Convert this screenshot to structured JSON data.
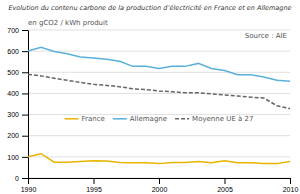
{
  "chart_data": {
    "type": "line",
    "title": "Evolution du contenu carbone de la production d’électricité en France et en Allemagne",
    "ylabel": "en gCO2 / kWh produit",
    "annotations": [
      "Source : AIE"
    ],
    "x": [
      1990,
      1991,
      1992,
      1993,
      1994,
      1995,
      1996,
      1997,
      1998,
      1999,
      2000,
      2001,
      2002,
      2003,
      2004,
      2005,
      2006,
      2007,
      2008,
      2009,
      2010
    ],
    "series": [
      {
        "name": "France",
        "color": "#e8b400",
        "line_style": "solid",
        "values": [
          100,
          115,
          75,
          75,
          78,
          82,
          80,
          73,
          72,
          72,
          68,
          73,
          73,
          78,
          72,
          82,
          72,
          72,
          68,
          68,
          78
        ]
      },
      {
        "name": "Allemagne",
        "color": "#5ab0d8",
        "line_style": "solid",
        "values": [
          600,
          618,
          598,
          588,
          572,
          568,
          562,
          552,
          528,
          528,
          518,
          528,
          528,
          542,
          518,
          508,
          488,
          488,
          478,
          462,
          458
        ]
      },
      {
        "name": "Moyenne UE à 27",
        "color": "#666666",
        "line_style": "dashed",
        "values": [
          490,
          483,
          472,
          462,
          452,
          443,
          438,
          432,
          422,
          418,
          412,
          408,
          403,
          403,
          398,
          393,
          388,
          382,
          378,
          342,
          328
        ]
      }
    ],
    "xlim": [
      1990,
      2010
    ],
    "xticks": [
      1990,
      1995,
      2000,
      2005,
      2010
    ],
    "ylim": [
      0,
      700
    ],
    "yticks": [
      0,
      100,
      200,
      300,
      400,
      500,
      600,
      700
    ],
    "grid": true,
    "legend": "center"
  }
}
